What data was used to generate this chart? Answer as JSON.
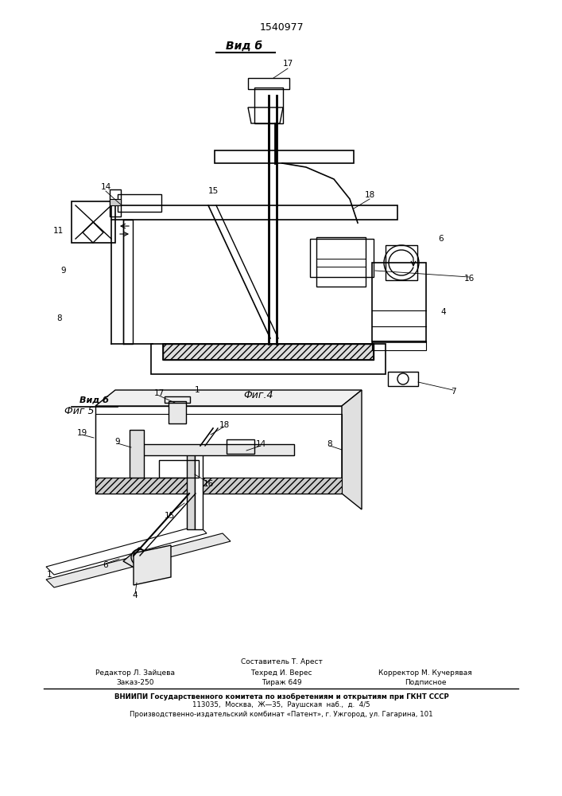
{
  "patent_number": "1540977",
  "view_label_top": "Вид б",
  "fig4_label": "Фиг.4",
  "fig5_label": "Фиг 5",
  "view_label_bottom": "Вид б",
  "footer": {
    "line0": "Составитель Т. Арест",
    "line1_col1": "Редактор Л. Зайцева",
    "line1_col2": "Техред И. Верес",
    "line1_col3": "Корректор М. Кучерявая",
    "line2_col1": "Заказ-250",
    "line2_col2": "Тираж 649",
    "line2_col3": "Подписное",
    "line3": "ВНИИПИ Государственного комитета по изобретениям и открытиям при ГКНТ СССР",
    "line4": "113035,  Москва,  Ж—35,  Раушская  наб.,  д.  4/5",
    "line5": "Производственно-издательский комбинат «Патент», г. Ужгород, ул. Гагарина, 101"
  },
  "bg_color": "#ffffff",
  "line_color": "#000000"
}
